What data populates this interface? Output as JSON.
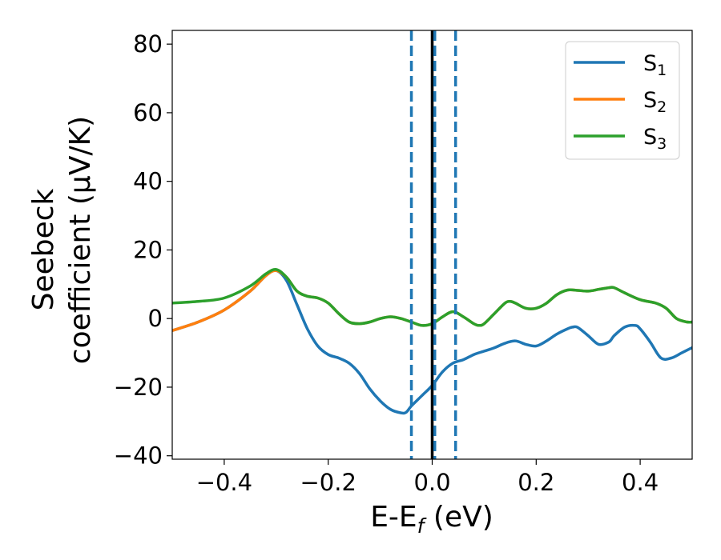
{
  "chart_data": {
    "type": "line",
    "title": "",
    "xlabel": {
      "main": "E-E",
      "sub": "f",
      "unit": " (eV)"
    },
    "ylabel": {
      "line1": "Seebeck",
      "line2": "coefficient  (μV/K)"
    },
    "xlim": [
      -0.5,
      0.5
    ],
    "ylim": [
      -41,
      84
    ],
    "xticks": [
      -0.4,
      -0.2,
      0.0,
      0.2,
      0.4
    ],
    "xtick_labels": [
      "−0.4",
      "−0.2",
      "0.0",
      "0.2",
      "0.4"
    ],
    "yticks": [
      -40,
      -20,
      0,
      20,
      40,
      60,
      80
    ],
    "ytick_labels": [
      "−40",
      "−20",
      "0",
      "20",
      "40",
      "60",
      "80"
    ],
    "grid": false,
    "legend_position": "top-right",
    "vlines": [
      {
        "x": 0.0,
        "style": "solid",
        "color": "#000000"
      },
      {
        "x": -0.04,
        "style": "dashed",
        "color": "#1f77b4"
      },
      {
        "x": 0.005,
        "style": "dashed",
        "color": "#1f77b4"
      },
      {
        "x": 0.045,
        "style": "dashed",
        "color": "#1f77b4"
      }
    ],
    "series": [
      {
        "name": "S",
        "sub": "1",
        "color": "#1f77b4",
        "x": [
          -0.5,
          -0.45,
          -0.4,
          -0.35,
          -0.32,
          -0.3,
          -0.28,
          -0.26,
          -0.24,
          -0.22,
          -0.2,
          -0.18,
          -0.16,
          -0.14,
          -0.12,
          -0.1,
          -0.08,
          -0.06,
          -0.05,
          -0.04,
          -0.02,
          0.0,
          0.02,
          0.04,
          0.06,
          0.08,
          0.1,
          0.12,
          0.14,
          0.16,
          0.18,
          0.2,
          0.22,
          0.24,
          0.26,
          0.27,
          0.28,
          0.3,
          0.32,
          0.34,
          0.35,
          0.37,
          0.39,
          0.4,
          0.42,
          0.44,
          0.46,
          0.48,
          0.5
        ],
        "y": [
          -3.5,
          -1,
          2.5,
          8,
          12.5,
          14,
          11,
          4,
          -3,
          -8,
          -10.5,
          -11.5,
          -13,
          -16,
          -20.5,
          -24,
          -26.5,
          -27.5,
          -27.3,
          -25.5,
          -22.5,
          -19.5,
          -15.5,
          -13,
          -12,
          -10.5,
          -9.5,
          -8.5,
          -7.2,
          -6.5,
          -7.5,
          -8,
          -6.5,
          -4.5,
          -3,
          -2.5,
          -2.6,
          -5,
          -7.5,
          -6.8,
          -5,
          -2.5,
          -2,
          -3,
          -7,
          -11.5,
          -11.5,
          -10,
          -8.5
        ]
      },
      {
        "name": "S",
        "sub": "2",
        "color": "#ff7f0e",
        "x": [
          -0.5,
          -0.45,
          -0.4,
          -0.35,
          -0.32,
          -0.3,
          -0.28,
          -0.26,
          -0.24,
          -0.22,
          -0.2,
          -0.18,
          -0.16,
          -0.14,
          -0.12,
          -0.1,
          -0.08,
          -0.06,
          -0.04,
          -0.02,
          0.0,
          0.02,
          0.04,
          0.06,
          0.08,
          0.09,
          0.1,
          0.12,
          0.14,
          0.15,
          0.16,
          0.18,
          0.2,
          0.22,
          0.24,
          0.26,
          0.28,
          0.3,
          0.32,
          0.34,
          0.35,
          0.37,
          0.4,
          0.43,
          0.45,
          0.47,
          0.49,
          0.5
        ],
        "y": [
          -3.5,
          -1,
          2.5,
          8,
          12.5,
          14,
          12,
          8,
          6.5,
          6,
          4.5,
          1.5,
          -1,
          -1.5,
          -1,
          0,
          0.5,
          0,
          -1,
          -2,
          -1.5,
          0.5,
          2,
          0.5,
          -1.5,
          -2,
          -1.5,
          1.5,
          4.5,
          5,
          4.5,
          3,
          3,
          4.5,
          7,
          8.3,
          8.2,
          8,
          8.5,
          9,
          9,
          7.5,
          5.5,
          4.5,
          3,
          0,
          -1,
          -1
        ]
      },
      {
        "name": "S",
        "sub": "3",
        "color": "#2ca02c",
        "x": [
          -0.5,
          -0.45,
          -0.4,
          -0.35,
          -0.32,
          -0.3,
          -0.28,
          -0.26,
          -0.24,
          -0.22,
          -0.2,
          -0.18,
          -0.16,
          -0.14,
          -0.12,
          -0.1,
          -0.08,
          -0.06,
          -0.04,
          -0.02,
          0.0,
          0.02,
          0.04,
          0.06,
          0.08,
          0.09,
          0.1,
          0.12,
          0.14,
          0.15,
          0.16,
          0.18,
          0.2,
          0.22,
          0.24,
          0.26,
          0.28,
          0.3,
          0.32,
          0.34,
          0.35,
          0.37,
          0.4,
          0.43,
          0.45,
          0.47,
          0.49,
          0.5
        ],
        "y": [
          4.5,
          5,
          6,
          9.5,
          13,
          14.3,
          12,
          8,
          6.5,
          6,
          4.5,
          1.5,
          -1,
          -1.5,
          -1,
          0,
          0.5,
          0,
          -1,
          -2,
          -1.5,
          0.5,
          2,
          0.5,
          -1.5,
          -2,
          -1.5,
          1.5,
          4.5,
          5,
          4.5,
          3,
          3,
          4.5,
          7,
          8.3,
          8.2,
          8,
          8.5,
          9,
          9,
          7.5,
          5.5,
          4.5,
          3,
          0,
          -1,
          -1
        ]
      }
    ]
  }
}
